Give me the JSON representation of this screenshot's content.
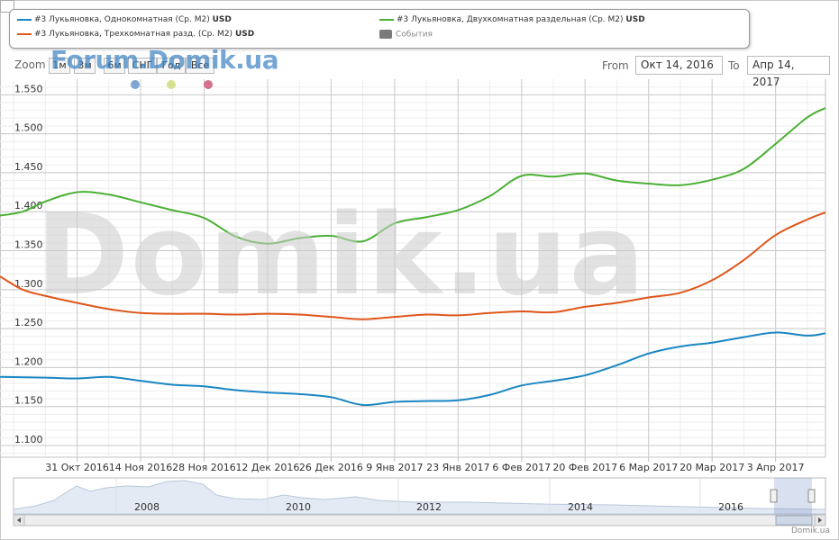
{
  "zoom": {
    "label": "Zoom",
    "buttons": [
      "1м",
      "3м",
      "6м",
      "СНГ",
      "Год",
      "Все"
    ]
  },
  "watermark_top": "Forum.Domik.ua",
  "watermark_big": "Domik.ua",
  "range": {
    "from_label": "From",
    "from_value": "Окт 14, 2016",
    "to_label": "To",
    "to_value": "Апр 14, 2017"
  },
  "legend": [
    {
      "name": "#3 Лукьяновка, Однокомнатная (Ср. М2)",
      "unit": "USD",
      "color": "#1a86c2",
      "kind": "line"
    },
    {
      "name": "#3 Лукьяновка, Трехкомнатная разд. (Ср. М2)",
      "unit": "USD",
      "color": "#e0561b",
      "kind": "line"
    },
    {
      "name": "#3 Лукьяновка, Двухкомнатная раздельная (Ср. М2)",
      "unit": "USD",
      "color": "#4bb034",
      "kind": "line"
    },
    {
      "name": "События",
      "unit": "",
      "color": "#7a7a7a",
      "kind": "box"
    }
  ],
  "event_dots": [
    "#7aa6d1",
    "#d8e08e",
    "#d6708c"
  ],
  "credit": "Domik.ua",
  "chart_data": {
    "type": "line",
    "x_ticks": [
      "31 Окт 2016",
      "14 Ноя 2016",
      "28 Ноя 2016",
      "12 Дек 2016",
      "26 Дек 2016",
      "9 Янв 2017",
      "23 Янв 2017",
      "6 Фев 2017",
      "20 Фев 2017",
      "6 Мар 2017",
      "20 Мар 2017",
      "3 Апр 2017"
    ],
    "x_range_days": [
      0,
      182
    ],
    "x_tick_days": [
      17,
      31,
      45,
      59,
      73,
      87,
      101,
      115,
      129,
      143,
      157,
      171
    ],
    "y_ticks": [
      "1.100",
      "1.150",
      "1.200",
      "1.250",
      "1.300",
      "1.350",
      "1.400",
      "1.450",
      "1.500",
      "1.550"
    ],
    "ylim": [
      1.085,
      1.57
    ],
    "grid": true,
    "series": [
      {
        "name": "#3 Лукьяновка, Однокомнатная (Ср. М2)",
        "color": "#1a86c2",
        "x": [
          0,
          10,
          17,
          24,
          31,
          38,
          45,
          52,
          59,
          66,
          73,
          80,
          87,
          94,
          101,
          108,
          115,
          122,
          129,
          136,
          143,
          150,
          157,
          164,
          171,
          178,
          182
        ],
        "y": [
          1.188,
          1.187,
          1.186,
          1.188,
          1.183,
          1.178,
          1.176,
          1.171,
          1.168,
          1.166,
          1.162,
          1.152,
          1.156,
          1.157,
          1.158,
          1.165,
          1.177,
          1.183,
          1.19,
          1.203,
          1.218,
          1.227,
          1.232,
          1.239,
          1.245,
          1.241,
          1.244
        ]
      },
      {
        "name": "#3 Лукьяновка, Трехкомнатная разд. (Ср. М2)",
        "color": "#e0561b",
        "x": [
          0,
          5,
          10,
          17,
          24,
          31,
          38,
          45,
          52,
          59,
          66,
          73,
          80,
          87,
          94,
          101,
          108,
          115,
          122,
          129,
          136,
          143,
          150,
          157,
          164,
          171,
          178,
          182
        ],
        "y": [
          1.317,
          1.3,
          1.292,
          1.283,
          1.275,
          1.27,
          1.269,
          1.269,
          1.268,
          1.269,
          1.268,
          1.265,
          1.262,
          1.265,
          1.268,
          1.267,
          1.27,
          1.272,
          1.271,
          1.278,
          1.283,
          1.29,
          1.296,
          1.312,
          1.338,
          1.37,
          1.39,
          1.399
        ]
      },
      {
        "name": "#3 Лукьяновка, Двухкомнатная раздельная (Ср. М2)",
        "color": "#4bb034",
        "x": [
          0,
          5,
          10,
          17,
          24,
          31,
          38,
          45,
          52,
          59,
          66,
          73,
          80,
          87,
          94,
          101,
          108,
          115,
          122,
          129,
          136,
          143,
          150,
          157,
          164,
          171,
          178,
          182
        ],
        "y": [
          1.395,
          1.4,
          1.413,
          1.425,
          1.422,
          1.412,
          1.402,
          1.392,
          1.368,
          1.359,
          1.366,
          1.369,
          1.362,
          1.385,
          1.393,
          1.402,
          1.42,
          1.446,
          1.445,
          1.449,
          1.44,
          1.436,
          1.434,
          1.441,
          1.455,
          1.487,
          1.521,
          1.533
        ]
      }
    ]
  },
  "navigator": {
    "year_labels": [
      "2008",
      "2010",
      "2012",
      "2014",
      "2016"
    ]
  }
}
